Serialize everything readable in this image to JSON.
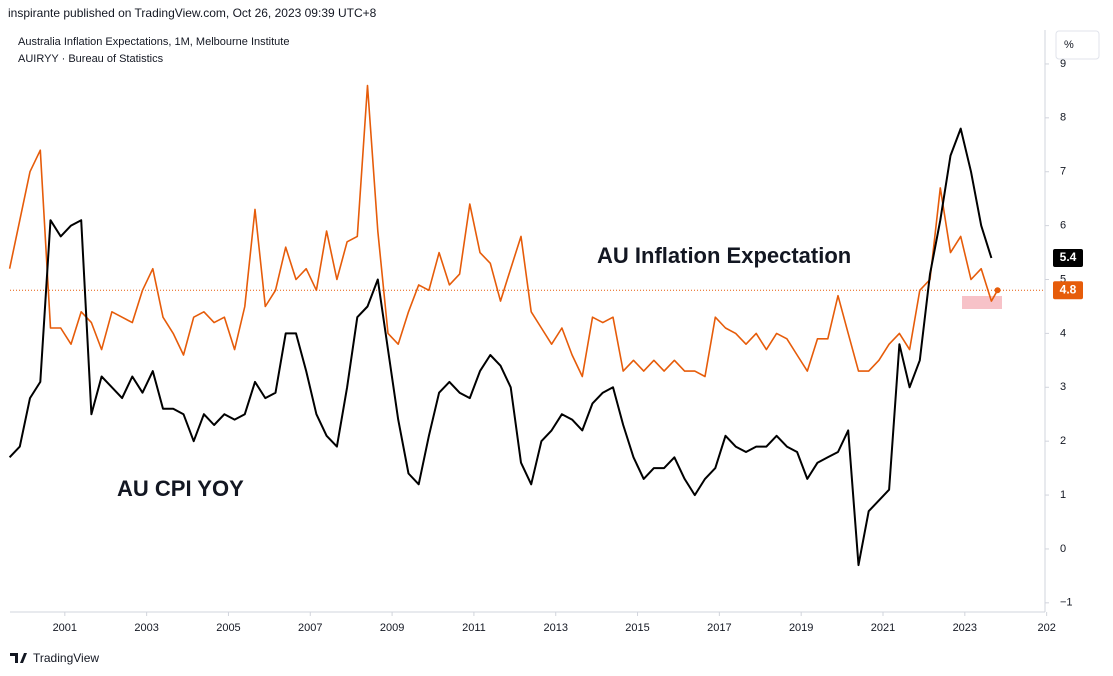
{
  "header": {
    "published": "inspirante published on TradingView.com, Oct 26, 2023 09:39 UTC+8"
  },
  "footer": {
    "brand": "TradingView"
  },
  "chart_data": {
    "type": "line",
    "title": "Australia Inflation Expectations, 1M, Melbourne Institute",
    "subtitle": "AUIRYY · Bureau of Statistics",
    "unit": "%",
    "annotations": [
      {
        "text": "AU Inflation Expectation",
        "color": "#e65c0a"
      },
      {
        "text": "AU CPI YOY",
        "color": "#000000"
      }
    ],
    "x": [
      1999.65,
      1999.9,
      2000.15,
      2000.4,
      2000.65,
      2000.9,
      2001.15,
      2001.4,
      2001.65,
      2001.9,
      2002.15,
      2002.4,
      2002.65,
      2002.9,
      2003.15,
      2003.4,
      2003.65,
      2003.9,
      2004.15,
      2004.4,
      2004.65,
      2004.9,
      2005.15,
      2005.4,
      2005.65,
      2005.9,
      2006.15,
      2006.4,
      2006.65,
      2006.9,
      2007.15,
      2007.4,
      2007.65,
      2007.9,
      2008.15,
      2008.4,
      2008.65,
      2008.9,
      2009.15,
      2009.4,
      2009.65,
      2009.9,
      2010.15,
      2010.4,
      2010.65,
      2010.9,
      2011.15,
      2011.4,
      2011.65,
      2011.9,
      2012.15,
      2012.4,
      2012.65,
      2012.9,
      2013.15,
      2013.4,
      2013.65,
      2013.9,
      2014.15,
      2014.4,
      2014.65,
      2014.9,
      2015.15,
      2015.4,
      2015.65,
      2015.9,
      2016.15,
      2016.4,
      2016.65,
      2016.9,
      2017.15,
      2017.4,
      2017.65,
      2017.9,
      2018.15,
      2018.4,
      2018.65,
      2018.9,
      2019.15,
      2019.4,
      2019.65,
      2019.9,
      2020.15,
      2020.4,
      2020.65,
      2020.9,
      2021.15,
      2021.4,
      2021.65,
      2021.9,
      2022.15,
      2022.4,
      2022.65,
      2022.9,
      2023.15,
      2023.4,
      2023.65,
      2023.8
    ],
    "series": [
      {
        "name": "AU Inflation Expectation",
        "color": "#e65c0a",
        "values": [
          5.2,
          6.1,
          7.0,
          7.4,
          4.1,
          4.1,
          3.8,
          4.4,
          4.2,
          3.7,
          4.4,
          4.3,
          4.2,
          4.8,
          5.2,
          4.3,
          4.0,
          3.6,
          4.3,
          4.4,
          4.2,
          4.3,
          3.7,
          4.5,
          6.3,
          4.5,
          4.8,
          5.6,
          5.0,
          5.2,
          4.8,
          5.9,
          5.0,
          5.7,
          5.8,
          8.6,
          5.9,
          4.0,
          3.8,
          4.4,
          4.9,
          4.8,
          5.5,
          4.9,
          5.1,
          6.4,
          5.5,
          5.3,
          4.6,
          5.2,
          5.8,
          4.4,
          4.1,
          3.8,
          4.1,
          3.6,
          3.2,
          4.3,
          4.2,
          4.3,
          3.3,
          3.5,
          3.3,
          3.5,
          3.3,
          3.5,
          3.3,
          3.3,
          3.2,
          4.3,
          4.1,
          4.0,
          3.8,
          4.0,
          3.7,
          4.0,
          3.9,
          3.6,
          3.3,
          3.9,
          3.9,
          4.7,
          4.0,
          3.3,
          3.3,
          3.5,
          3.8,
          4.0,
          3.7,
          4.8,
          5.0,
          6.7,
          5.5,
          5.8,
          5.0,
          5.2,
          4.6,
          4.8
        ]
      },
      {
        "name": "AU CPI YOY",
        "color": "#000000",
        "values": [
          1.7,
          1.9,
          2.8,
          3.1,
          6.1,
          5.8,
          6.0,
          6.1,
          2.5,
          3.2,
          3.0,
          2.8,
          3.2,
          2.9,
          3.3,
          2.6,
          2.6,
          2.5,
          2.0,
          2.5,
          2.3,
          2.5,
          2.4,
          2.5,
          3.1,
          2.8,
          2.9,
          4.0,
          4.0,
          3.3,
          2.5,
          2.1,
          1.9,
          3.0,
          4.3,
          4.5,
          5.0,
          3.7,
          2.4,
          1.4,
          1.2,
          2.1,
          2.9,
          3.1,
          2.9,
          2.8,
          3.3,
          3.6,
          3.4,
          3.0,
          1.6,
          1.2,
          2.0,
          2.2,
          2.5,
          2.4,
          2.2,
          2.7,
          2.9,
          3.0,
          2.3,
          1.7,
          1.3,
          1.5,
          1.5,
          1.7,
          1.3,
          1.0,
          1.3,
          1.5,
          2.1,
          1.9,
          1.8,
          1.9,
          1.9,
          2.1,
          1.9,
          1.8,
          1.3,
          1.6,
          1.7,
          1.8,
          2.2,
          -0.3,
          0.7,
          0.9,
          1.1,
          3.8,
          3.0,
          3.5,
          5.1,
          6.1,
          7.3,
          7.8,
          7.0,
          6.0,
          5.4,
          null
        ]
      }
    ],
    "xlim": [
      1999.66,
      2024.96
    ],
    "xticks": [
      2001,
      2003,
      2005,
      2007,
      2009,
      2011,
      2013,
      2015,
      2017,
      2019,
      2021,
      2023,
      {
        "value": 2025,
        "label": "202"
      }
    ],
    "ylim": [
      -1.17,
      9.63
    ],
    "yticks": [
      9,
      8,
      7,
      6,
      5,
      4,
      3,
      2,
      1,
      0,
      {
        "value": -1,
        "label": "−1"
      }
    ]
  }
}
